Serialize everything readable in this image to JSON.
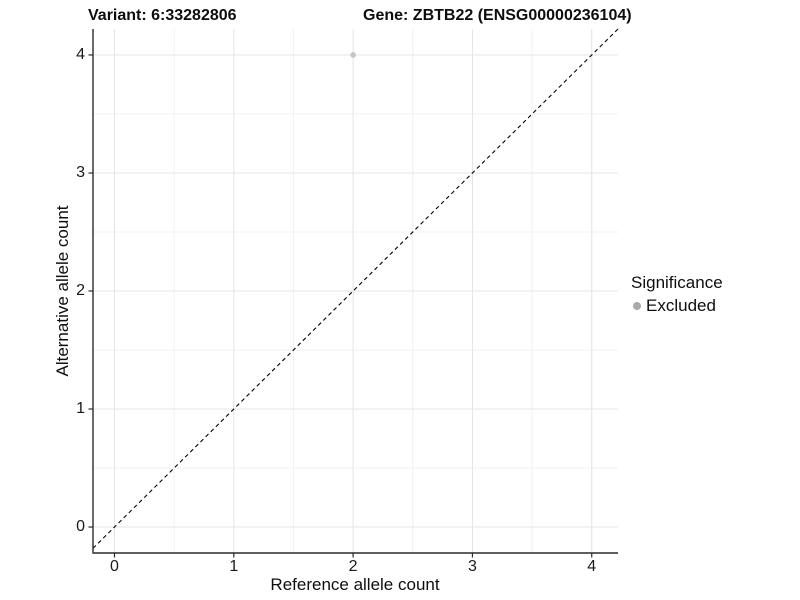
{
  "header": {
    "title_left": "Variant: 6:33282806",
    "title_right": "Gene: ZBTB22 (ENSG00000236104)"
  },
  "chart_data": {
    "type": "scatter",
    "title": "Variant: 6:33282806   Gene: ZBTB22 (ENSG00000236104)",
    "xlabel": "Reference allele count",
    "ylabel": "Alternative allele count",
    "x_ticks": [
      0,
      1,
      2,
      3,
      4
    ],
    "y_ticks": [
      0,
      1,
      2,
      3,
      4
    ],
    "xlim": [
      -0.18,
      4.22
    ],
    "ylim": [
      -0.22,
      4.22
    ],
    "minor_grid_step": 0.5,
    "grid": true,
    "points": [
      {
        "x": 2,
        "y": 4,
        "series": "Excluded"
      }
    ],
    "reference_line": {
      "kind": "identity-diagonal",
      "style": "dashed",
      "color": "#000000"
    },
    "point_style": {
      "color": "#c4c4c4",
      "radius": 2.8
    },
    "legend": {
      "title": "Significance",
      "position": "right",
      "items": [
        {
          "label": "Excluded",
          "color": "#a9a9a9"
        }
      ]
    },
    "colors": {
      "background": "#ffffff",
      "grid_major": "#e4e4e4",
      "grid_minor": "#f1f1f1",
      "axis_line": "#2a2a2a",
      "text": "#0e0e0e"
    }
  }
}
